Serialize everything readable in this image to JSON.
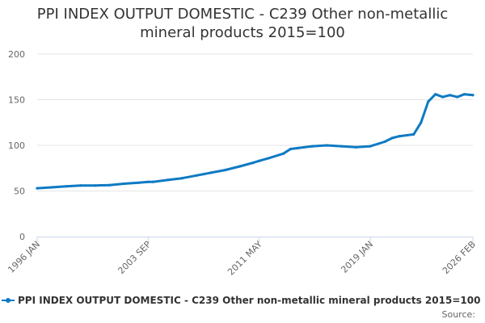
{
  "title_lines": [
    "PPI INDEX OUTPUT DOMESTIC - C239 Other non-metallic",
    "mineral products 2015=100"
  ],
  "source_label": "Source:",
  "colors": {
    "series": "#0e7ac4",
    "grid": "#e6e6e6",
    "axis": "#ccd6eb"
  },
  "chart_data": {
    "type": "line",
    "title": "PPI INDEX OUTPUT DOMESTIC - C239 Other non-metallic mineral products 2015=100",
    "xlabel": "",
    "ylabel": "",
    "x_tick_labels": [
      "1996 JAN",
      "2003 SEP",
      "2011 MAY",
      "2019 JAN",
      "2026 FEB"
    ],
    "x_range": [
      "1996 JAN",
      "2026 FEB"
    ],
    "ylim": [
      0,
      200
    ],
    "y_ticks": [
      0,
      50,
      100,
      150,
      200
    ],
    "grid": true,
    "legend_position": "bottom-left",
    "series": [
      {
        "name": "PPI INDEX OUTPUT DOMESTIC - C239 Other non-metallic mineral products 2015=100",
        "points": [
          [
            "1996 JAN",
            53
          ],
          [
            "1997 JAN",
            54
          ],
          [
            "1998 JAN",
            55
          ],
          [
            "1999 JAN",
            56
          ],
          [
            "2000 JAN",
            56
          ],
          [
            "2001 JAN",
            56.5
          ],
          [
            "2002 JAN",
            58
          ],
          [
            "2003 JAN",
            59
          ],
          [
            "2003 SEP",
            60
          ],
          [
            "2004 JAN",
            60
          ],
          [
            "2005 JAN",
            62
          ],
          [
            "2006 JAN",
            64
          ],
          [
            "2007 JAN",
            67
          ],
          [
            "2008 JAN",
            70
          ],
          [
            "2009 JAN",
            73
          ],
          [
            "2010 JAN",
            77
          ],
          [
            "2010 DEC",
            81
          ],
          [
            "2011 MAY",
            83
          ],
          [
            "2012 JAN",
            86
          ],
          [
            "2013 JAN",
            91
          ],
          [
            "2013 JUL",
            96
          ],
          [
            "2014 JAN",
            97
          ],
          [
            "2015 JAN",
            99
          ],
          [
            "2016 JAN",
            100
          ],
          [
            "2017 JAN",
            99
          ],
          [
            "2018 JAN",
            98
          ],
          [
            "2019 JAN",
            99
          ],
          [
            "2020 JAN",
            104
          ],
          [
            "2020 JUL",
            108
          ],
          [
            "2021 JAN",
            110
          ],
          [
            "2022 JAN",
            112
          ],
          [
            "2022 JUL",
            125
          ],
          [
            "2023 JAN",
            148
          ],
          [
            "2023 JUL",
            156
          ],
          [
            "2024 JAN",
            153
          ],
          [
            "2024 JUL",
            155
          ],
          [
            "2025 JAN",
            153
          ],
          [
            "2025 JUL",
            156
          ],
          [
            "2026 FEB",
            155
          ]
        ]
      }
    ]
  }
}
